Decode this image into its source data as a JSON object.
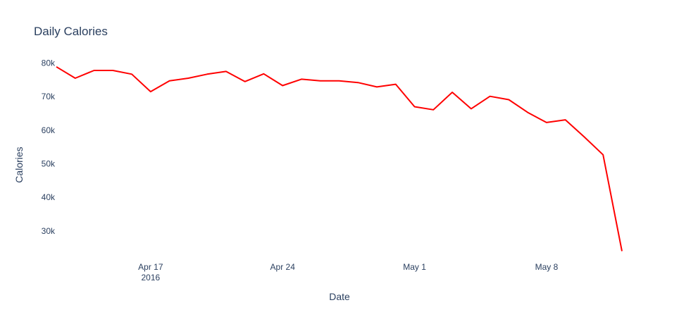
{
  "chart_data": {
    "type": "line",
    "title": "Daily Calories",
    "xlabel": "Date",
    "ylabel": "Calories",
    "x_ticks": [
      {
        "date": "2016-04-17",
        "label": "Apr 17",
        "sublabel": "2016"
      },
      {
        "date": "2016-04-24",
        "label": "Apr 24",
        "sublabel": ""
      },
      {
        "date": "2016-05-01",
        "label": "May 1",
        "sublabel": ""
      },
      {
        "date": "2016-05-08",
        "label": "May 8",
        "sublabel": ""
      }
    ],
    "y_ticks": [
      {
        "value": 30000,
        "label": "30k"
      },
      {
        "value": 40000,
        "label": "40k"
      },
      {
        "value": 50000,
        "label": "50k"
      },
      {
        "value": 60000,
        "label": "60k"
      },
      {
        "value": 70000,
        "label": "70k"
      },
      {
        "value": 80000,
        "label": "80k"
      }
    ],
    "xlim": [
      "2016-04-12",
      "2016-05-12"
    ],
    "ylim": [
      22000,
      82000
    ],
    "grid": true,
    "color": "#ff0000",
    "series": [
      {
        "x": [
          "2016-04-12",
          "2016-04-13",
          "2016-04-14",
          "2016-04-15",
          "2016-04-16",
          "2016-04-17",
          "2016-04-18",
          "2016-04-19",
          "2016-04-20",
          "2016-04-21",
          "2016-04-22",
          "2016-04-23",
          "2016-04-24",
          "2016-04-25",
          "2016-04-26",
          "2016-04-27",
          "2016-04-28",
          "2016-04-29",
          "2016-04-30",
          "2016-05-01",
          "2016-05-02",
          "2016-05-03",
          "2016-05-04",
          "2016-05-05",
          "2016-05-06",
          "2016-05-07",
          "2016-05-08",
          "2016-05-09",
          "2016-05-10",
          "2016-05-11",
          "2016-05-12"
        ],
        "values": [
          78900,
          75500,
          77800,
          77800,
          76700,
          71500,
          74700,
          75500,
          76700,
          77500,
          74500,
          76800,
          73300,
          75200,
          74700,
          74700,
          74200,
          72900,
          73700,
          67000,
          66100,
          71300,
          66400,
          70100,
          69100,
          65300,
          62300,
          63100,
          58000,
          52700,
          24000
        ]
      }
    ]
  }
}
